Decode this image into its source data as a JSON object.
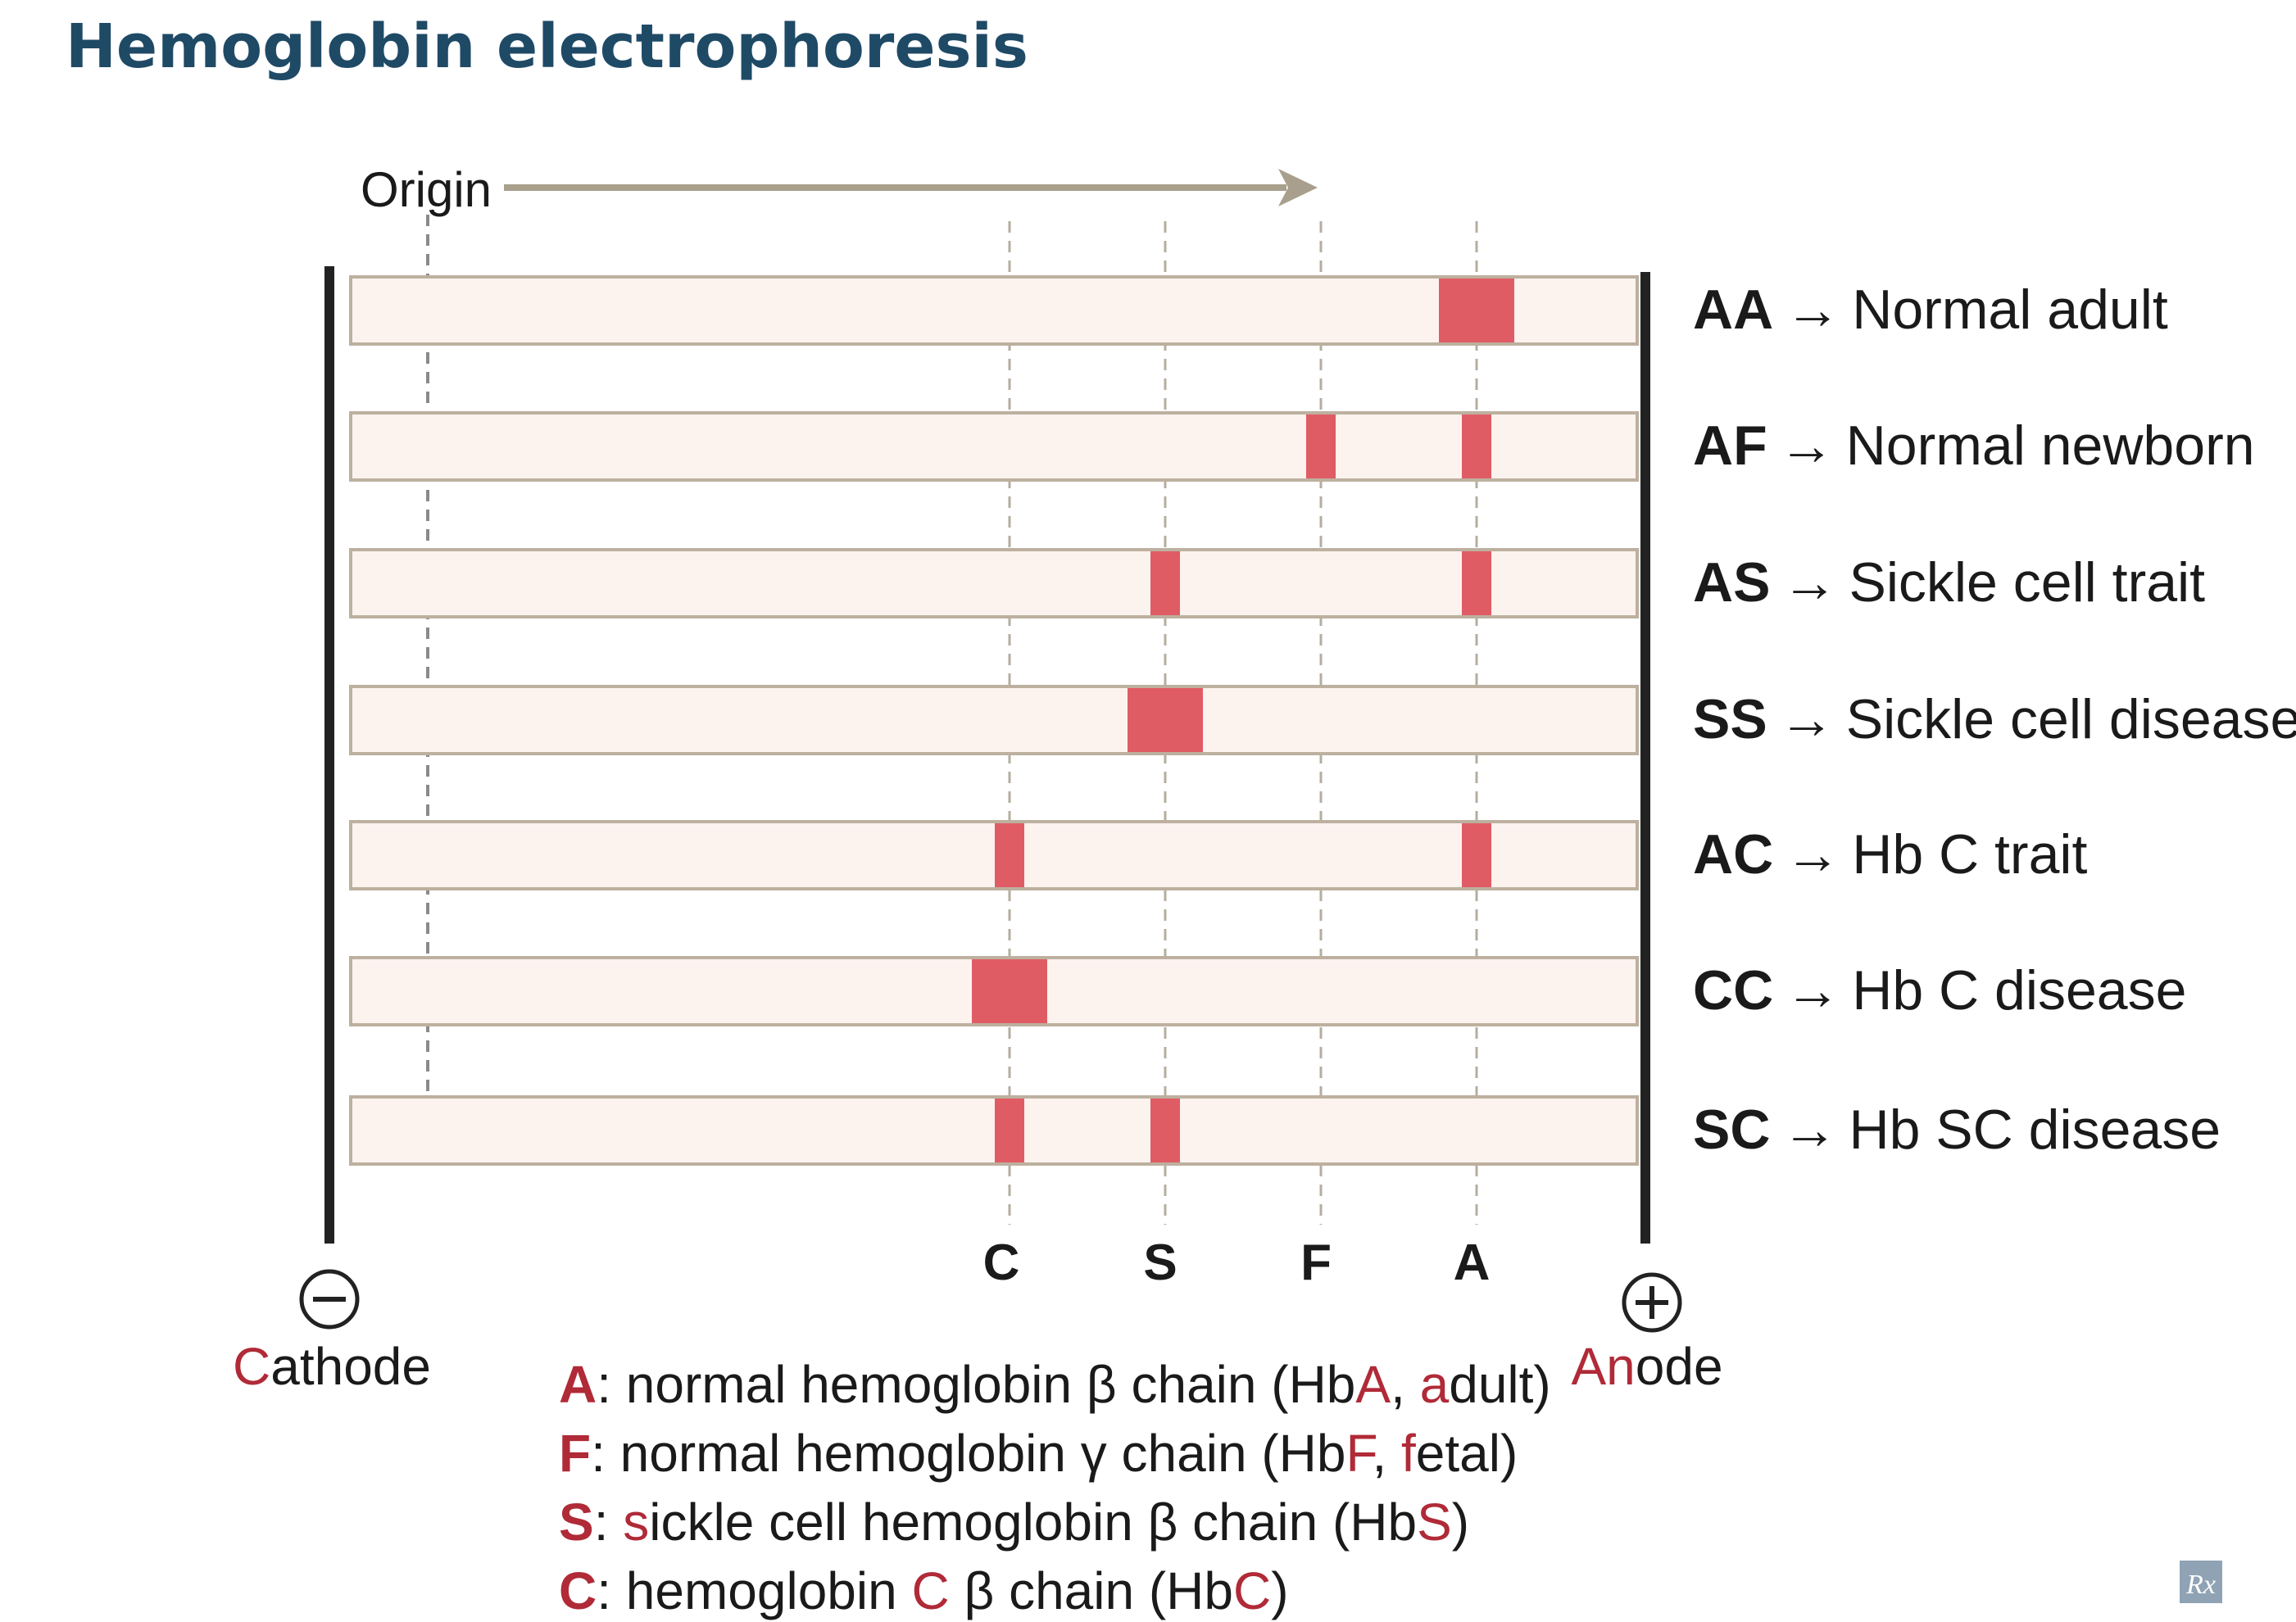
{
  "title": "Hemoglobin electrophoresis",
  "origin_label": "Origin",
  "colors": {
    "title": "#1f4a66",
    "band": "#e05c64",
    "lane_fill": "#fcf3ef",
    "lane_border": "#bdb09f",
    "arrow": "#a89f8c",
    "electrode": "#222222",
    "accent_text": "#b02a37"
  },
  "marker_order": [
    "C",
    "S",
    "F",
    "A"
  ],
  "markers": {
    "C": "C",
    "S": "S",
    "F": "F",
    "A": "A"
  },
  "lanes": [
    {
      "genotype": "AA",
      "arrow": "→",
      "label": "Normal adult",
      "bands": [
        {
          "type": "A",
          "strength": "double"
        }
      ]
    },
    {
      "genotype": "AF",
      "arrow": "→",
      "label": "Normal newborn",
      "bands": [
        {
          "type": "F",
          "strength": "single"
        },
        {
          "type": "A",
          "strength": "single"
        }
      ]
    },
    {
      "genotype": "AS",
      "arrow": "→",
      "label": "Sickle cell trait",
      "bands": [
        {
          "type": "S",
          "strength": "single"
        },
        {
          "type": "A",
          "strength": "single"
        }
      ]
    },
    {
      "genotype": "SS",
      "arrow": "→",
      "label": "Sickle cell disease",
      "bands": [
        {
          "type": "S",
          "strength": "double"
        }
      ]
    },
    {
      "genotype": "AC",
      "arrow": "→",
      "label": "Hb C trait",
      "bands": [
        {
          "type": "C",
          "strength": "single"
        },
        {
          "type": "A",
          "strength": "single"
        }
      ]
    },
    {
      "genotype": "CC",
      "arrow": "→",
      "label": "Hb C disease",
      "bands": [
        {
          "type": "C",
          "strength": "double"
        }
      ]
    },
    {
      "genotype": "SC",
      "arrow": "→",
      "label": "Hb SC disease",
      "bands": [
        {
          "type": "C",
          "strength": "single"
        },
        {
          "type": "S",
          "strength": "single"
        }
      ]
    }
  ],
  "cathode": {
    "symbol": "−",
    "initial": "C",
    "rest": "athode"
  },
  "anode": {
    "symbol": "+",
    "initial": "An",
    "rest": "ode"
  },
  "legend": [
    {
      "key": "A",
      "parts": [
        {
          "t": ": normal hemoglobin β chain (Hb",
          "red": false
        },
        {
          "t": "A",
          "red": true
        },
        {
          "t": ", ",
          "red": false
        },
        {
          "t": "a",
          "red": true
        },
        {
          "t": "dult)",
          "red": false
        }
      ]
    },
    {
      "key": "F",
      "parts": [
        {
          "t": ": normal hemoglobin γ chain (Hb",
          "red": false
        },
        {
          "t": "F",
          "red": true
        },
        {
          "t": ", ",
          "red": false
        },
        {
          "t": "f",
          "red": true
        },
        {
          "t": "etal)",
          "red": false
        }
      ]
    },
    {
      "key": "S",
      "parts": [
        {
          "t": ": ",
          "red": false
        },
        {
          "t": "s",
          "red": true
        },
        {
          "t": "ickle cell hemoglobin β chain (Hb",
          "red": false
        },
        {
          "t": "S",
          "red": true
        },
        {
          "t": ")",
          "red": false
        }
      ]
    },
    {
      "key": "C",
      "parts": [
        {
          "t": ": hemoglobin ",
          "red": false
        },
        {
          "t": "C",
          "red": true
        },
        {
          "t": " β chain (Hb",
          "red": false
        },
        {
          "t": "C",
          "red": true
        },
        {
          "t": ")",
          "red": false
        }
      ]
    }
  ],
  "logo_text": "Rx"
}
